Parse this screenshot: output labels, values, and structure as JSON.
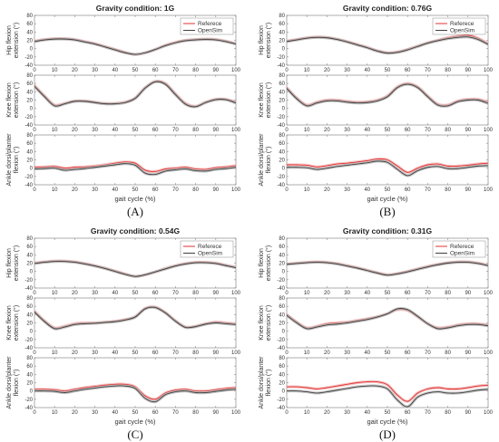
{
  "colors": {
    "reference": "#e03030",
    "opensim": "#404040",
    "axis": "#8a8a8a",
    "reference_band": "#f3b3b3",
    "opensim_band": "#b8b8b8"
  },
  "common": {
    "xlabel": "gait cycle (%)",
    "xticks": [
      "0",
      "10",
      "20",
      "30",
      "40",
      "50",
      "60",
      "70",
      "80",
      "90",
      "100"
    ],
    "hip_ylabel": [
      "Hip flexion",
      "extension (°)"
    ],
    "knee_ylabel": [
      "Knee flexion",
      "extension (°)"
    ],
    "ankle_ylabel": [
      "Ankle dorsi/planter",
      "flexion (°)"
    ],
    "hip_yticks": [
      "80",
      "60",
      "40",
      "20",
      "0",
      "-20",
      "-40"
    ],
    "knee_yticks": [
      "80",
      "60",
      "40",
      "20",
      "0",
      "-20",
      "-40"
    ],
    "ankle_yticks": [
      "80",
      "60",
      "40",
      "20",
      "0",
      "-20",
      "-40"
    ],
    "legend": [
      "Referece",
      "OpenSim"
    ]
  },
  "chart_data": [
    {
      "type": "line",
      "panel_label": "(A)",
      "title": "Gravity condition: 1G",
      "xlim": [
        0,
        100
      ],
      "x": [
        0,
        5,
        10,
        15,
        20,
        25,
        30,
        35,
        40,
        45,
        50,
        55,
        60,
        65,
        70,
        75,
        80,
        85,
        90,
        95,
        100
      ],
      "subplots": [
        {
          "name": "hip",
          "ylim": [
            -40,
            80
          ],
          "series": [
            {
              "name": "Referece",
              "values": [
                18,
                22,
                24,
                24,
                22,
                17,
                12,
                5,
                -2,
                -9,
                -14,
                -10,
                -2,
                8,
                15,
                20,
                22,
                23,
                22,
                18,
                12
              ]
            },
            {
              "name": "OpenSim",
              "values": [
                17,
                21,
                23,
                23,
                21,
                16,
                11,
                4,
                -3,
                -10,
                -14,
                -10,
                -2,
                7,
                14,
                19,
                21,
                22,
                21,
                17,
                11
              ]
            }
          ]
        },
        {
          "name": "knee",
          "ylim": [
            -40,
            80
          ],
          "series": [
            {
              "name": "Referece",
              "values": [
                55,
                30,
                8,
                12,
                18,
                18,
                15,
                12,
                12,
                15,
                25,
                50,
                65,
                60,
                35,
                12,
                5,
                15,
                22,
                22,
                15
              ]
            },
            {
              "name": "OpenSim",
              "values": [
                53,
                28,
                6,
                11,
                17,
                17,
                14,
                11,
                11,
                14,
                24,
                49,
                64,
                58,
                33,
                10,
                4,
                14,
                21,
                21,
                13
              ]
            }
          ]
        },
        {
          "name": "ankle",
          "ylim": [
            -40,
            80
          ],
          "series": [
            {
              "name": "Referece",
              "values": [
                2,
                3,
                4,
                0,
                2,
                3,
                5,
                8,
                12,
                15,
                12,
                -5,
                -8,
                -2,
                0,
                2,
                -2,
                -3,
                1,
                3,
                6
              ]
            },
            {
              "name": "OpenSim",
              "values": [
                -2,
                -1,
                0,
                -5,
                -3,
                -1,
                2,
                5,
                8,
                11,
                7,
                -12,
                -15,
                -7,
                -4,
                -2,
                -6,
                -7,
                -3,
                -1,
                2
              ]
            }
          ]
        }
      ]
    },
    {
      "type": "line",
      "panel_label": "(B)",
      "title": "Gravity condition: 0.76G",
      "xlim": [
        0,
        100
      ],
      "x": [
        0,
        5,
        10,
        15,
        20,
        25,
        30,
        35,
        40,
        45,
        50,
        55,
        60,
        65,
        70,
        75,
        80,
        85,
        90,
        95,
        100
      ],
      "subplots": [
        {
          "name": "hip",
          "ylim": [
            -40,
            80
          ],
          "series": [
            {
              "name": "Referece",
              "values": [
                18,
                22,
                26,
                28,
                27,
                23,
                17,
                10,
                3,
                -5,
                -10,
                -8,
                -2,
                6,
                14,
                20,
                26,
                30,
                32,
                25,
                12
              ]
            },
            {
              "name": "OpenSim",
              "values": [
                17,
                21,
                25,
                27,
                26,
                22,
                16,
                9,
                2,
                -6,
                -11,
                -9,
                -3,
                5,
                13,
                19,
                24,
                27,
                28,
                22,
                10
              ]
            }
          ]
        },
        {
          "name": "knee",
          "ylim": [
            -40,
            80
          ],
          "series": [
            {
              "name": "Referece",
              "values": [
                50,
                25,
                8,
                15,
                20,
                20,
                17,
                15,
                16,
                20,
                30,
                52,
                60,
                52,
                30,
                10,
                8,
                18,
                22,
                22,
                15
              ]
            },
            {
              "name": "OpenSim",
              "values": [
                48,
                23,
                6,
                13,
                18,
                18,
                15,
                13,
                14,
                18,
                28,
                50,
                58,
                50,
                28,
                8,
                6,
                16,
                20,
                20,
                12
              ]
            }
          ]
        },
        {
          "name": "ankle",
          "ylim": [
            -40,
            80
          ],
          "series": [
            {
              "name": "Referece",
              "values": [
                8,
                8,
                7,
                3,
                6,
                10,
                12,
                15,
                18,
                22,
                20,
                5,
                -10,
                0,
                8,
                10,
                5,
                5,
                7,
                10,
                12
              ]
            },
            {
              "name": "OpenSim",
              "values": [
                2,
                2,
                1,
                -3,
                0,
                4,
                7,
                10,
                13,
                17,
                14,
                -3,
                -18,
                -6,
                2,
                4,
                -1,
                -1,
                2,
                5,
                6
              ]
            }
          ]
        }
      ]
    },
    {
      "type": "line",
      "panel_label": "(C)",
      "title": "Gravity condition: 0.54G",
      "xlim": [
        0,
        100
      ],
      "x": [
        0,
        5,
        10,
        15,
        20,
        25,
        30,
        35,
        40,
        45,
        50,
        55,
        60,
        65,
        70,
        75,
        80,
        85,
        90,
        95,
        100
      ],
      "subplots": [
        {
          "name": "hip",
          "ylim": [
            -40,
            80
          ],
          "series": [
            {
              "name": "Referece",
              "values": [
                20,
                23,
                25,
                25,
                23,
                19,
                14,
                8,
                1,
                -6,
                -12,
                -8,
                -1,
                7,
                14,
                19,
                22,
                22,
                20,
                15,
                10
              ]
            },
            {
              "name": "OpenSim",
              "values": [
                19,
                22,
                24,
                24,
                22,
                18,
                13,
                7,
                0,
                -7,
                -12,
                -8,
                -1,
                6,
                13,
                18,
                21,
                21,
                19,
                14,
                9
              ]
            }
          ]
        },
        {
          "name": "knee",
          "ylim": [
            -40,
            80
          ],
          "series": [
            {
              "name": "Referece",
              "values": [
                48,
                25,
                8,
                12,
                18,
                20,
                20,
                22,
                24,
                28,
                35,
                55,
                58,
                45,
                25,
                10,
                12,
                18,
                22,
                20,
                18
              ]
            },
            {
              "name": "OpenSim",
              "values": [
                46,
                23,
                6,
                10,
                16,
                18,
                19,
                21,
                23,
                27,
                34,
                54,
                57,
                44,
                24,
                9,
                11,
                17,
                20,
                18,
                16
              ]
            }
          ]
        },
        {
          "name": "ankle",
          "ylim": [
            -40,
            80
          ],
          "series": [
            {
              "name": "Referece",
              "values": [
                4,
                4,
                3,
                0,
                4,
                8,
                11,
                14,
                16,
                16,
                10,
                -12,
                -20,
                -5,
                2,
                4,
                0,
                0,
                3,
                6,
                8
              ]
            },
            {
              "name": "OpenSim",
              "values": [
                0,
                0,
                -1,
                -4,
                0,
                4,
                7,
                10,
                12,
                12,
                6,
                -18,
                -26,
                -9,
                -2,
                0,
                -4,
                -4,
                -1,
                2,
                4
              ]
            }
          ]
        }
      ]
    },
    {
      "type": "line",
      "panel_label": "(D)",
      "title": "Gravity condition: 0.31G",
      "xlim": [
        0,
        100
      ],
      "x": [
        0,
        5,
        10,
        15,
        20,
        25,
        30,
        35,
        40,
        45,
        50,
        55,
        60,
        65,
        70,
        75,
        80,
        85,
        90,
        95,
        100
      ],
      "subplots": [
        {
          "name": "hip",
          "ylim": [
            -40,
            80
          ],
          "series": [
            {
              "name": "Referece",
              "values": [
                18,
                20,
                22,
                23,
                22,
                19,
                14,
                9,
                3,
                -3,
                -8,
                -5,
                0,
                6,
                12,
                17,
                21,
                23,
                23,
                20,
                15
              ]
            },
            {
              "name": "OpenSim",
              "values": [
                17,
                19,
                21,
                22,
                21,
                18,
                13,
                8,
                2,
                -4,
                -9,
                -6,
                -1,
                5,
                11,
                16,
                20,
                22,
                22,
                19,
                14
              ]
            }
          ]
        },
        {
          "name": "knee",
          "ylim": [
            -40,
            80
          ],
          "series": [
            {
              "name": "Referece",
              "values": [
                40,
                22,
                8,
                12,
                18,
                20,
                22,
                26,
                30,
                35,
                42,
                52,
                50,
                35,
                18,
                8,
                10,
                15,
                18,
                18,
                15
              ]
            },
            {
              "name": "OpenSim",
              "values": [
                38,
                20,
                6,
                10,
                15,
                17,
                20,
                24,
                28,
                34,
                42,
                54,
                52,
                36,
                18,
                6,
                8,
                13,
                16,
                16,
                13
              ]
            }
          ]
        },
        {
          "name": "ankle",
          "ylim": [
            -40,
            80
          ],
          "series": [
            {
              "name": "Referece",
              "values": [
                10,
                10,
                8,
                5,
                8,
                12,
                16,
                20,
                22,
                22,
                15,
                -10,
                -25,
                -5,
                5,
                8,
                5,
                5,
                8,
                12,
                14
              ]
            },
            {
              "name": "OpenSim",
              "values": [
                0,
                0,
                -2,
                -5,
                -2,
                2,
                6,
                10,
                12,
                12,
                5,
                -22,
                -38,
                -15,
                -5,
                -2,
                -5,
                -5,
                -2,
                2,
                4
              ]
            }
          ]
        }
      ]
    }
  ]
}
